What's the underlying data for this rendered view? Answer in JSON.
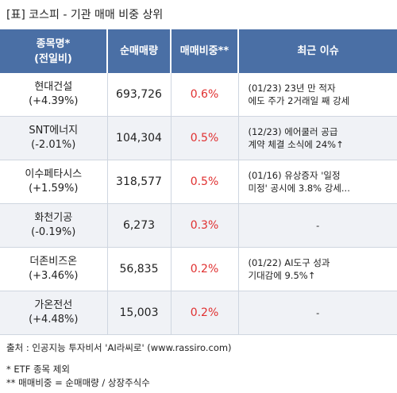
{
  "title": "[표] 코스피 - 기관 매매 비중 상위",
  "headers": {
    "name_line1": "종목명*",
    "name_line2": "(전일비)",
    "volume": "순매매량",
    "ratio": "매매비중**",
    "issue": "최근 이슈"
  },
  "rows": [
    {
      "name": "현대건설",
      "change": "(+4.39%)",
      "volume": "693,726",
      "ratio": "0.6%",
      "issue1": "(01/23) 23년 만 적자",
      "issue2": "에도 주가 2거래일 째 강세"
    },
    {
      "name": "SNT에너지",
      "change": "(-2.01%)",
      "volume": "104,304",
      "ratio": "0.5%",
      "issue1": "(12/23) 에어쿨러 공급",
      "issue2": "계약 체결 소식에 24%↑"
    },
    {
      "name": "이수페타시스",
      "change": "(+1.59%)",
      "volume": "318,577",
      "ratio": "0.5%",
      "issue1": "(01/16) 유상증자 '일정",
      "issue2": "미정' 공시에 3.8% 강세..."
    },
    {
      "name": "화천기공",
      "change": "(-0.19%)",
      "volume": "6,273",
      "ratio": "0.3%",
      "issue1": "-",
      "issue2": ""
    },
    {
      "name": "더존비즈온",
      "change": "(+3.46%)",
      "volume": "56,835",
      "ratio": "0.2%",
      "issue1": "(01/22) AI도구 성과",
      "issue2": "기대감에 9.5%↑"
    },
    {
      "name": "가온전선",
      "change": "(+4.48%)",
      "volume": "15,003",
      "ratio": "0.2%",
      "issue1": "-",
      "issue2": ""
    }
  ],
  "footer": {
    "source": "출처 : 인공지능 투자비서 'AI라씨로' (www.rassiro.com)",
    "note1": "* ETF 종목 제외",
    "note2": "** 매매비중 = 순매매량 / 상장주식수"
  },
  "colors": {
    "header_bg": "#4a6fa5",
    "ratio_text": "#e03030",
    "alt_row_bg": "#f0f2f6"
  }
}
